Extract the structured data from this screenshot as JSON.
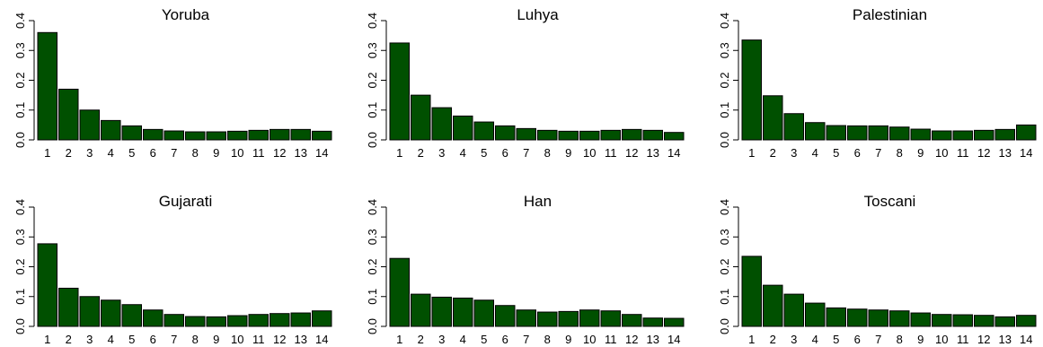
{
  "bar_color": "#005000",
  "chart_data": [
    {
      "type": "bar",
      "title": "Yoruba",
      "categories": [
        "1",
        "2",
        "3",
        "4",
        "5",
        "6",
        "7",
        "8",
        "9",
        "10",
        "11",
        "12",
        "13",
        "14"
      ],
      "values": [
        0.36,
        0.17,
        0.1,
        0.065,
        0.047,
        0.035,
        0.03,
        0.027,
        0.027,
        0.029,
        0.032,
        0.035,
        0.035,
        0.029
      ],
      "ylim": [
        0,
        0.4
      ],
      "yticks": [
        "0.0",
        "0.1",
        "0.2",
        "0.3",
        "0.4"
      ],
      "xlabel": "",
      "ylabel": "",
      "grid": false
    },
    {
      "type": "bar",
      "title": "Luhya",
      "categories": [
        "1",
        "2",
        "3",
        "4",
        "5",
        "6",
        "7",
        "8",
        "9",
        "10",
        "11",
        "12",
        "13",
        "14"
      ],
      "values": [
        0.325,
        0.15,
        0.108,
        0.08,
        0.06,
        0.047,
        0.038,
        0.032,
        0.029,
        0.029,
        0.032,
        0.035,
        0.032,
        0.025
      ],
      "ylim": [
        0,
        0.4
      ],
      "yticks": [
        "0.0",
        "0.1",
        "0.2",
        "0.3",
        "0.4"
      ],
      "xlabel": "",
      "ylabel": "",
      "grid": false
    },
    {
      "type": "bar",
      "title": "Palestinian",
      "categories": [
        "1",
        "2",
        "3",
        "4",
        "5",
        "6",
        "7",
        "8",
        "9",
        "10",
        "11",
        "12",
        "13",
        "14"
      ],
      "values": [
        0.335,
        0.148,
        0.088,
        0.058,
        0.048,
        0.047,
        0.047,
        0.043,
        0.036,
        0.03,
        0.03,
        0.032,
        0.035,
        0.05
      ],
      "ylim": [
        0,
        0.4
      ],
      "yticks": [
        "0.0",
        "0.1",
        "0.2",
        "0.3",
        "0.4"
      ],
      "xlabel": "",
      "ylabel": "",
      "grid": false
    },
    {
      "type": "bar",
      "title": "Gujarati",
      "categories": [
        "1",
        "2",
        "3",
        "4",
        "5",
        "6",
        "7",
        "8",
        "9",
        "10",
        "11",
        "12",
        "13",
        "14"
      ],
      "values": [
        0.277,
        0.128,
        0.1,
        0.088,
        0.073,
        0.055,
        0.04,
        0.033,
        0.032,
        0.036,
        0.04,
        0.043,
        0.045,
        0.052
      ],
      "ylim": [
        0,
        0.4
      ],
      "yticks": [
        "0.0",
        "0.1",
        "0.2",
        "0.3",
        "0.4"
      ],
      "xlabel": "",
      "ylabel": "",
      "grid": false
    },
    {
      "type": "bar",
      "title": "Han",
      "categories": [
        "1",
        "2",
        "3",
        "4",
        "5",
        "6",
        "7",
        "8",
        "9",
        "10",
        "11",
        "12",
        "13",
        "14"
      ],
      "values": [
        0.228,
        0.108,
        0.098,
        0.095,
        0.088,
        0.07,
        0.055,
        0.048,
        0.05,
        0.055,
        0.052,
        0.04,
        0.028,
        0.027
      ],
      "ylim": [
        0,
        0.4
      ],
      "yticks": [
        "0.0",
        "0.1",
        "0.2",
        "0.3",
        "0.4"
      ],
      "xlabel": "",
      "ylabel": "",
      "grid": false
    },
    {
      "type": "bar",
      "title": "Toscani",
      "categories": [
        "1",
        "2",
        "3",
        "4",
        "5",
        "6",
        "7",
        "8",
        "9",
        "10",
        "11",
        "12",
        "13",
        "14"
      ],
      "values": [
        0.235,
        0.138,
        0.108,
        0.078,
        0.062,
        0.058,
        0.055,
        0.052,
        0.045,
        0.04,
        0.039,
        0.037,
        0.032,
        0.037
      ],
      "ylim": [
        0,
        0.4
      ],
      "yticks": [
        "0.0",
        "0.1",
        "0.2",
        "0.3",
        "0.4"
      ],
      "xlabel": "",
      "ylabel": "",
      "grid": false
    }
  ]
}
